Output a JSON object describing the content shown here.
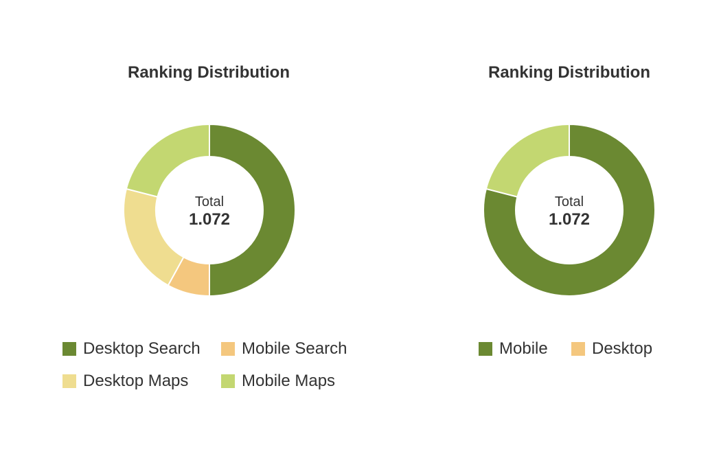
{
  "colors": {
    "dark_green": "#6b8932",
    "orange": "#f4c77e",
    "pale_yellow": "#efdd90",
    "light_green": "#c3d771"
  },
  "chart_data": [
    {
      "type": "pie",
      "title": "Ranking Distribution",
      "center_label": "Total",
      "center_value": "1.072",
      "slices": [
        {
          "name": "Desktop Search",
          "value": 50,
          "color": "#6b8932"
        },
        {
          "name": "Mobile Search",
          "value": 8,
          "color": "#f4c77e"
        },
        {
          "name": "Desktop Maps",
          "value": 21,
          "color": "#efdd90"
        },
        {
          "name": "Mobile Maps",
          "value": 21,
          "color": "#c3d771"
        }
      ],
      "legend": [
        {
          "label": "Desktop Search",
          "color": "#6b8932"
        },
        {
          "label": "Mobile Search",
          "color": "#f4c77e"
        },
        {
          "label": "Desktop Maps",
          "color": "#efdd90"
        },
        {
          "label": "Mobile Maps",
          "color": "#c3d771"
        }
      ],
      "legend_placement": "bottom"
    },
    {
      "type": "pie",
      "title": "Ranking Distribution",
      "center_label": "Total",
      "center_value": "1.072",
      "slices": [
        {
          "name": "Mobile",
          "value": 79,
          "color": "#6b8932"
        },
        {
          "name": "",
          "value": 21,
          "color": "#c3d771"
        }
      ],
      "legend": [
        {
          "label": "Mobile",
          "color": "#6b8932"
        },
        {
          "label": "Desktop",
          "color": "#f4c77e"
        }
      ],
      "legend_placement": "bottom"
    }
  ]
}
